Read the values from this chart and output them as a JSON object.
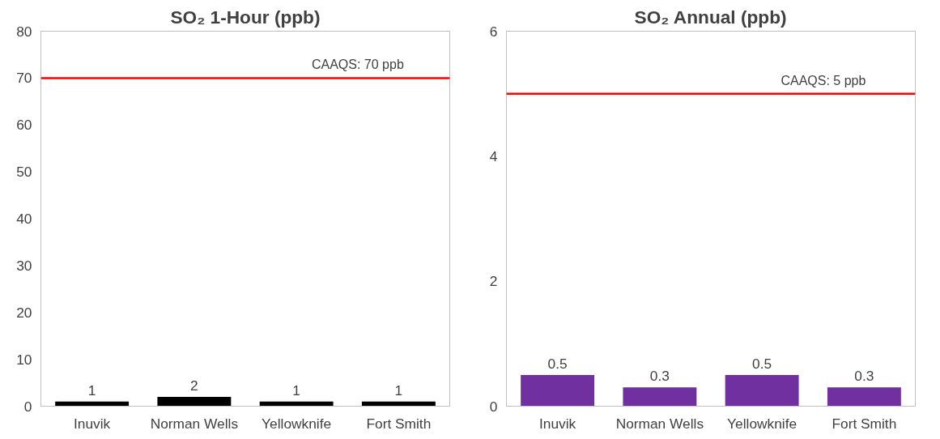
{
  "chart_data": [
    {
      "type": "bar",
      "title": "SO₂ 1-Hour (ppb)",
      "categories": [
        "Inuvik",
        "Norman Wells",
        "Yellowknife",
        "Fort Smith"
      ],
      "values": [
        1,
        2,
        1,
        1
      ],
      "color": "#000000",
      "ylim": [
        0,
        80
      ],
      "yticks": [
        0,
        10,
        20,
        30,
        40,
        50,
        60,
        70,
        80
      ],
      "data_labels": true,
      "grid": false,
      "ref_lines": [
        {
          "axis": "y",
          "value": 70,
          "label": "CAAQS: 70 ppb",
          "color": "#ff0000"
        }
      ]
    },
    {
      "type": "bar",
      "title": "SO₂ Annual (ppb)",
      "categories": [
        "Inuvik",
        "Norman Wells",
        "Yellowknife",
        "Fort Smith"
      ],
      "values": [
        0.5,
        0.3,
        0.5,
        0.3
      ],
      "color": "#7030a0",
      "ylim": [
        0,
        6
      ],
      "yticks": [
        0,
        2,
        4,
        6
      ],
      "data_labels": true,
      "grid": false,
      "ref_lines": [
        {
          "axis": "y",
          "value": 5,
          "label": "CAAQS: 5 ppb",
          "color": "#ff0000"
        }
      ]
    }
  ]
}
